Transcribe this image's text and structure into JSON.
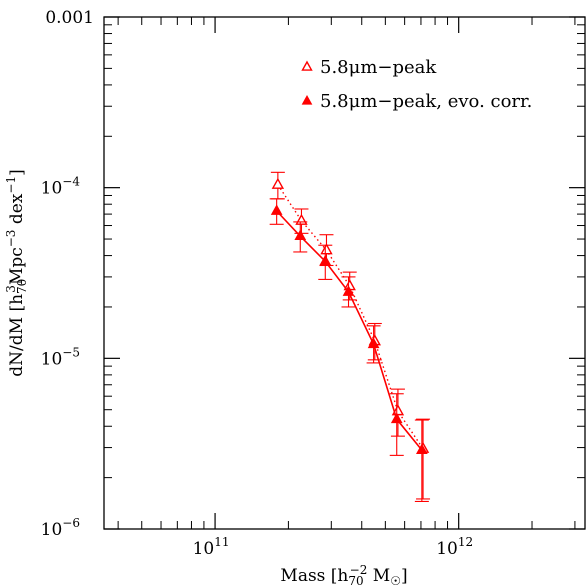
{
  "chart_data": {
    "type": "scatter",
    "xscale": "log",
    "yscale": "log",
    "xlim": [
      35000000000.0,
      3300000000000.0
    ],
    "ylim": [
      1e-06,
      0.001
    ],
    "grid": false,
    "legend_position": "top-right",
    "xlabel": "Mass [h⁻²₇₀ M☉]",
    "ylabel": "dN/dM [h³₇₀Mpc⁻³ dex⁻¹]",
    "x_ticks": [
      {
        "value": 100000000000.0,
        "base": "10",
        "exp": "11"
      },
      {
        "value": 1000000000000.0,
        "base": "10",
        "exp": "12"
      }
    ],
    "y_ticks": [
      {
        "value": 0.001,
        "text": "0.001"
      },
      {
        "value": 0.0001,
        "base": "10",
        "exp": "−4"
      },
      {
        "value": 1e-05,
        "base": "10",
        "exp": "−5"
      },
      {
        "value": 1e-06,
        "base": "10",
        "exp": "−6"
      }
    ],
    "series": [
      {
        "name": "5.8μm−peak",
        "marker": "open-triangle",
        "line": "dotted",
        "color": "#ff0000",
        "points": [
          {
            "x": 180000000000.0,
            "y": 0.000104,
            "ylo": 8.6e-05,
            "yhi": 0.000123
          },
          {
            "x": 225000000000.0,
            "y": 6.4e-05,
            "ylo": 5.4e-05,
            "yhi": 7.5e-05
          },
          {
            "x": 285000000000.0,
            "y": 4.3e-05,
            "ylo": 3.5e-05,
            "yhi": 5.3e-05
          },
          {
            "x": 355000000000.0,
            "y": 2.65e-05,
            "ylo": 2.2e-05,
            "yhi": 3.2e-05
          },
          {
            "x": 450000000000.0,
            "y": 1.26e-05,
            "ylo": 9.8e-06,
            "yhi": 1.6e-05
          },
          {
            "x": 560000000000.0,
            "y": 4.9e-06,
            "ylo": 3.5e-06,
            "yhi": 6.6e-06
          },
          {
            "x": 710000000000.0,
            "y": 2.95e-06,
            "ylo": 1.5e-06,
            "yhi": 4.4e-06
          }
        ]
      },
      {
        "name": "5.8μm−peak, evo. corr.",
        "marker": "filled-triangle",
        "line": "solid",
        "color": "#ff0000",
        "points": [
          {
            "x": 180000000000.0,
            "y": 7.3e-05,
            "ylo": 6.1e-05,
            "yhi": 8.6e-05
          },
          {
            "x": 225000000000.0,
            "y": 5.2e-05,
            "ylo": 4.2e-05,
            "yhi": 6.3e-05
          },
          {
            "x": 285000000000.0,
            "y": 3.7e-05,
            "ylo": 2.9e-05,
            "yhi": 4.6e-05
          },
          {
            "x": 355000000000.0,
            "y": 2.45e-05,
            "ylo": 2e-05,
            "yhi": 3e-05
          },
          {
            "x": 450000000000.0,
            "y": 1.21e-05,
            "ylo": 9.4e-06,
            "yhi": 1.55e-05
          },
          {
            "x": 560000000000.0,
            "y": 4.4e-06,
            "ylo": 2.7e-06,
            "yhi": 6.2e-06
          },
          {
            "x": 710000000000.0,
            "y": 2.9e-06,
            "ylo": 1.45e-06,
            "yhi": 4.35e-06
          }
        ]
      }
    ]
  }
}
